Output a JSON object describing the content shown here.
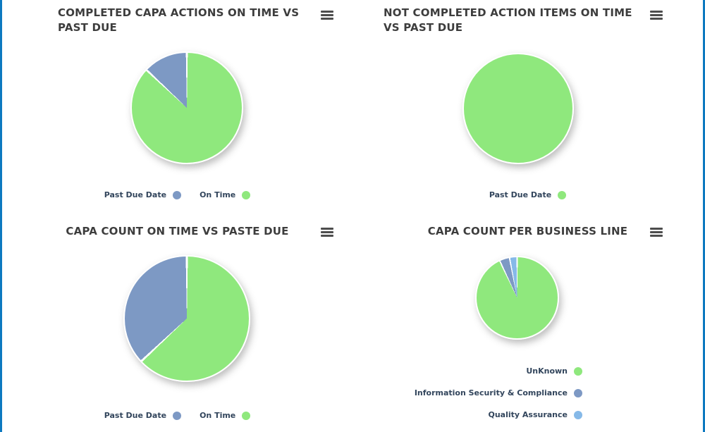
{
  "page": {
    "background": "#ffffff",
    "frame_border_color": "#0d79c0"
  },
  "icons": {
    "menu": "hamburger-menu-icon"
  },
  "colors": {
    "green": "#8fe87d",
    "blue_gray": "#7d99c4",
    "light_blue": "#86b9e8",
    "title_text": "#3d3d3d",
    "legend_text": "#32455c"
  },
  "chart_data": [
    {
      "type": "pie",
      "title": "COMPLETED CAPA ACTIONS ON TIME VS PAST DUE",
      "legend_position": "bottom-center",
      "slices": [
        {
          "label": "On Time",
          "value": 87,
          "color": "#8fe87d"
        },
        {
          "label": "Past Due Date",
          "value": 13,
          "color": "#7d99c4"
        }
      ],
      "legend": [
        {
          "label": "Past Due Date",
          "color": "#7d99c4"
        },
        {
          "label": "On Time",
          "color": "#8fe87d"
        }
      ]
    },
    {
      "type": "pie",
      "title": "NOT COMPLETED ACTION ITEMS ON TIME VS PAST DUE",
      "legend_position": "bottom-center",
      "slices": [
        {
          "label": "Past Due Date",
          "value": 100,
          "color": "#8fe87d"
        }
      ],
      "legend": [
        {
          "label": "Past Due Date",
          "color": "#8fe87d"
        }
      ]
    },
    {
      "type": "pie",
      "title": "CAPA COUNT ON TIME VS PASTE DUE",
      "legend_position": "bottom-center",
      "slices": [
        {
          "label": "On Time",
          "value": 63,
          "color": "#8fe87d"
        },
        {
          "label": "Past Due Date",
          "value": 37,
          "color": "#7d99c4"
        }
      ],
      "legend": [
        {
          "label": "Past Due Date",
          "color": "#7d99c4"
        },
        {
          "label": "On Time",
          "color": "#8fe87d"
        }
      ]
    },
    {
      "type": "pie",
      "title": "CAPA COUNT PER BUSINESS LINE",
      "legend_position": "bottom-right-stacked",
      "slices": [
        {
          "label": "UnKnown",
          "value": 93,
          "color": "#8fe87d"
        },
        {
          "label": "Information Security & Compliance",
          "value": 4,
          "color": "#7d99c4"
        },
        {
          "label": "Quality Assurance",
          "value": 3,
          "color": "#86b9e8"
        }
      ],
      "legend": [
        {
          "label": "UnKnown",
          "color": "#8fe87d"
        },
        {
          "label": "Information Security & Compliance",
          "color": "#7d99c4"
        },
        {
          "label": "Quality Assurance",
          "color": "#86b9e8"
        }
      ]
    }
  ]
}
